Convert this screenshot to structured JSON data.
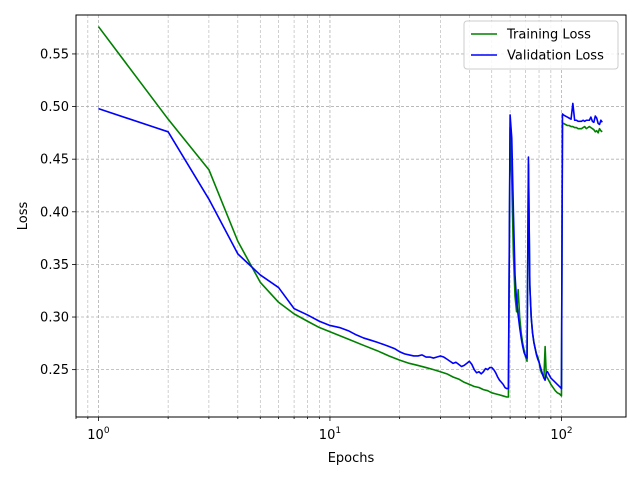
{
  "chart_data": {
    "type": "line",
    "xscale": "log",
    "xlim": [
      0.8,
      190
    ],
    "ylim": [
      0.205,
      0.587
    ],
    "xlabel": "Epochs",
    "ylabel": "Loss",
    "grid": true,
    "grid_style": "dashed",
    "legend_position": "top-right",
    "xticks": [
      {
        "value": 1,
        "base": "10",
        "exp": "0"
      },
      {
        "value": 10,
        "base": "10",
        "exp": "1"
      },
      {
        "value": 100,
        "base": "10",
        "exp": "2"
      }
    ],
    "yticks": [
      {
        "value": 0.25,
        "label": "0.25"
      },
      {
        "value": 0.3,
        "label": "0.30"
      },
      {
        "value": 0.35,
        "label": "0.35"
      },
      {
        "value": 0.4,
        "label": "0.40"
      },
      {
        "value": 0.45,
        "label": "0.45"
      },
      {
        "value": 0.5,
        "label": "0.50"
      },
      {
        "value": 0.55,
        "label": "0.55"
      }
    ],
    "series": [
      {
        "name": "Training Loss",
        "color": "#008000",
        "x": [
          1,
          2,
          3,
          4,
          5,
          6,
          7,
          8,
          9,
          10,
          12,
          14,
          16,
          18,
          20,
          22,
          24,
          26,
          28,
          30,
          32,
          34,
          36,
          38,
          40,
          42,
          44,
          46,
          48,
          50,
          52,
          54,
          56,
          58,
          59,
          60,
          61,
          62,
          63,
          64,
          65,
          66,
          67,
          68,
          69,
          70,
          71,
          72,
          73,
          74,
          75,
          76,
          77,
          78,
          79,
          80,
          81,
          82,
          83,
          84,
          85,
          86,
          87,
          88,
          89,
          90,
          92,
          94,
          96,
          98,
          100,
          101,
          102,
          104,
          106,
          108,
          110,
          112,
          114,
          116,
          118,
          120,
          122,
          124,
          126,
          128,
          130,
          132,
          134,
          136,
          138,
          140,
          142,
          144,
          146,
          148,
          150
        ],
        "y": [
          0.576,
          0.488,
          0.44,
          0.372,
          0.333,
          0.314,
          0.303,
          0.296,
          0.29,
          0.286,
          0.279,
          0.273,
          0.268,
          0.263,
          0.259,
          0.256,
          0.254,
          0.252,
          0.25,
          0.248,
          0.246,
          0.243,
          0.241,
          0.238,
          0.236,
          0.234,
          0.233,
          0.231,
          0.23,
          0.228,
          0.227,
          0.226,
          0.225,
          0.224,
          0.224,
          0.48,
          0.43,
          0.36,
          0.32,
          0.305,
          0.326,
          0.3,
          0.285,
          0.275,
          0.268,
          0.262,
          0.258,
          0.445,
          0.33,
          0.3,
          0.285,
          0.276,
          0.27,
          0.265,
          0.262,
          0.258,
          0.25,
          0.247,
          0.245,
          0.243,
          0.272,
          0.244,
          0.242,
          0.24,
          0.238,
          0.236,
          0.233,
          0.23,
          0.228,
          0.227,
          0.225,
          0.484,
          0.484,
          0.483,
          0.482,
          0.482,
          0.481,
          0.481,
          0.48,
          0.48,
          0.479,
          0.479,
          0.479,
          0.48,
          0.481,
          0.479,
          0.48,
          0.481,
          0.48,
          0.479,
          0.478,
          0.476,
          0.477,
          0.475,
          0.479,
          0.477,
          0.476
        ]
      },
      {
        "name": "Validation Loss",
        "color": "#0000ff",
        "x": [
          1,
          2,
          3,
          4,
          5,
          6,
          7,
          8,
          9,
          10,
          11,
          12,
          13,
          14,
          15,
          16,
          17,
          18,
          19,
          20,
          21,
          22,
          23,
          24,
          25,
          26,
          27,
          28,
          29,
          30,
          31,
          32,
          33,
          34,
          35,
          36,
          37,
          38,
          39,
          40,
          41,
          42,
          43,
          44,
          45,
          46,
          47,
          48,
          49,
          50,
          51,
          52,
          53,
          54,
          55,
          56,
          57,
          58,
          59,
          60,
          61,
          62,
          63,
          64,
          65,
          66,
          67,
          68,
          69,
          70,
          71,
          72,
          73,
          74,
          75,
          76,
          77,
          78,
          79,
          80,
          81,
          82,
          83,
          84,
          85,
          86,
          87,
          88,
          89,
          90,
          92,
          94,
          96,
          98,
          100,
          101,
          102,
          104,
          106,
          108,
          110,
          112,
          114,
          116,
          118,
          120,
          122,
          124,
          126,
          128,
          130,
          132,
          134,
          136,
          138,
          140,
          142,
          144,
          146,
          148,
          150
        ],
        "y": [
          0.498,
          0.476,
          0.412,
          0.36,
          0.34,
          0.328,
          0.308,
          0.302,
          0.296,
          0.292,
          0.29,
          0.287,
          0.283,
          0.28,
          0.278,
          0.276,
          0.274,
          0.272,
          0.27,
          0.267,
          0.265,
          0.264,
          0.263,
          0.263,
          0.264,
          0.262,
          0.262,
          0.261,
          0.262,
          0.263,
          0.262,
          0.26,
          0.258,
          0.256,
          0.257,
          0.255,
          0.253,
          0.254,
          0.256,
          0.258,
          0.255,
          0.25,
          0.247,
          0.248,
          0.246,
          0.248,
          0.251,
          0.25,
          0.252,
          0.252,
          0.25,
          0.247,
          0.243,
          0.24,
          0.238,
          0.236,
          0.233,
          0.232,
          0.232,
          0.492,
          0.47,
          0.4,
          0.34,
          0.315,
          0.302,
          0.29,
          0.28,
          0.272,
          0.266,
          0.263,
          0.261,
          0.452,
          0.33,
          0.3,
          0.285,
          0.276,
          0.27,
          0.264,
          0.26,
          0.257,
          0.253,
          0.249,
          0.245,
          0.242,
          0.24,
          0.247,
          0.248,
          0.246,
          0.244,
          0.242,
          0.24,
          0.238,
          0.236,
          0.234,
          0.232,
          0.493,
          0.492,
          0.491,
          0.49,
          0.489,
          0.488,
          0.503,
          0.487,
          0.487,
          0.486,
          0.486,
          0.486,
          0.487,
          0.486,
          0.487,
          0.487,
          0.487,
          0.49,
          0.486,
          0.485,
          0.491,
          0.489,
          0.484,
          0.483,
          0.487,
          0.485
        ]
      }
    ]
  }
}
